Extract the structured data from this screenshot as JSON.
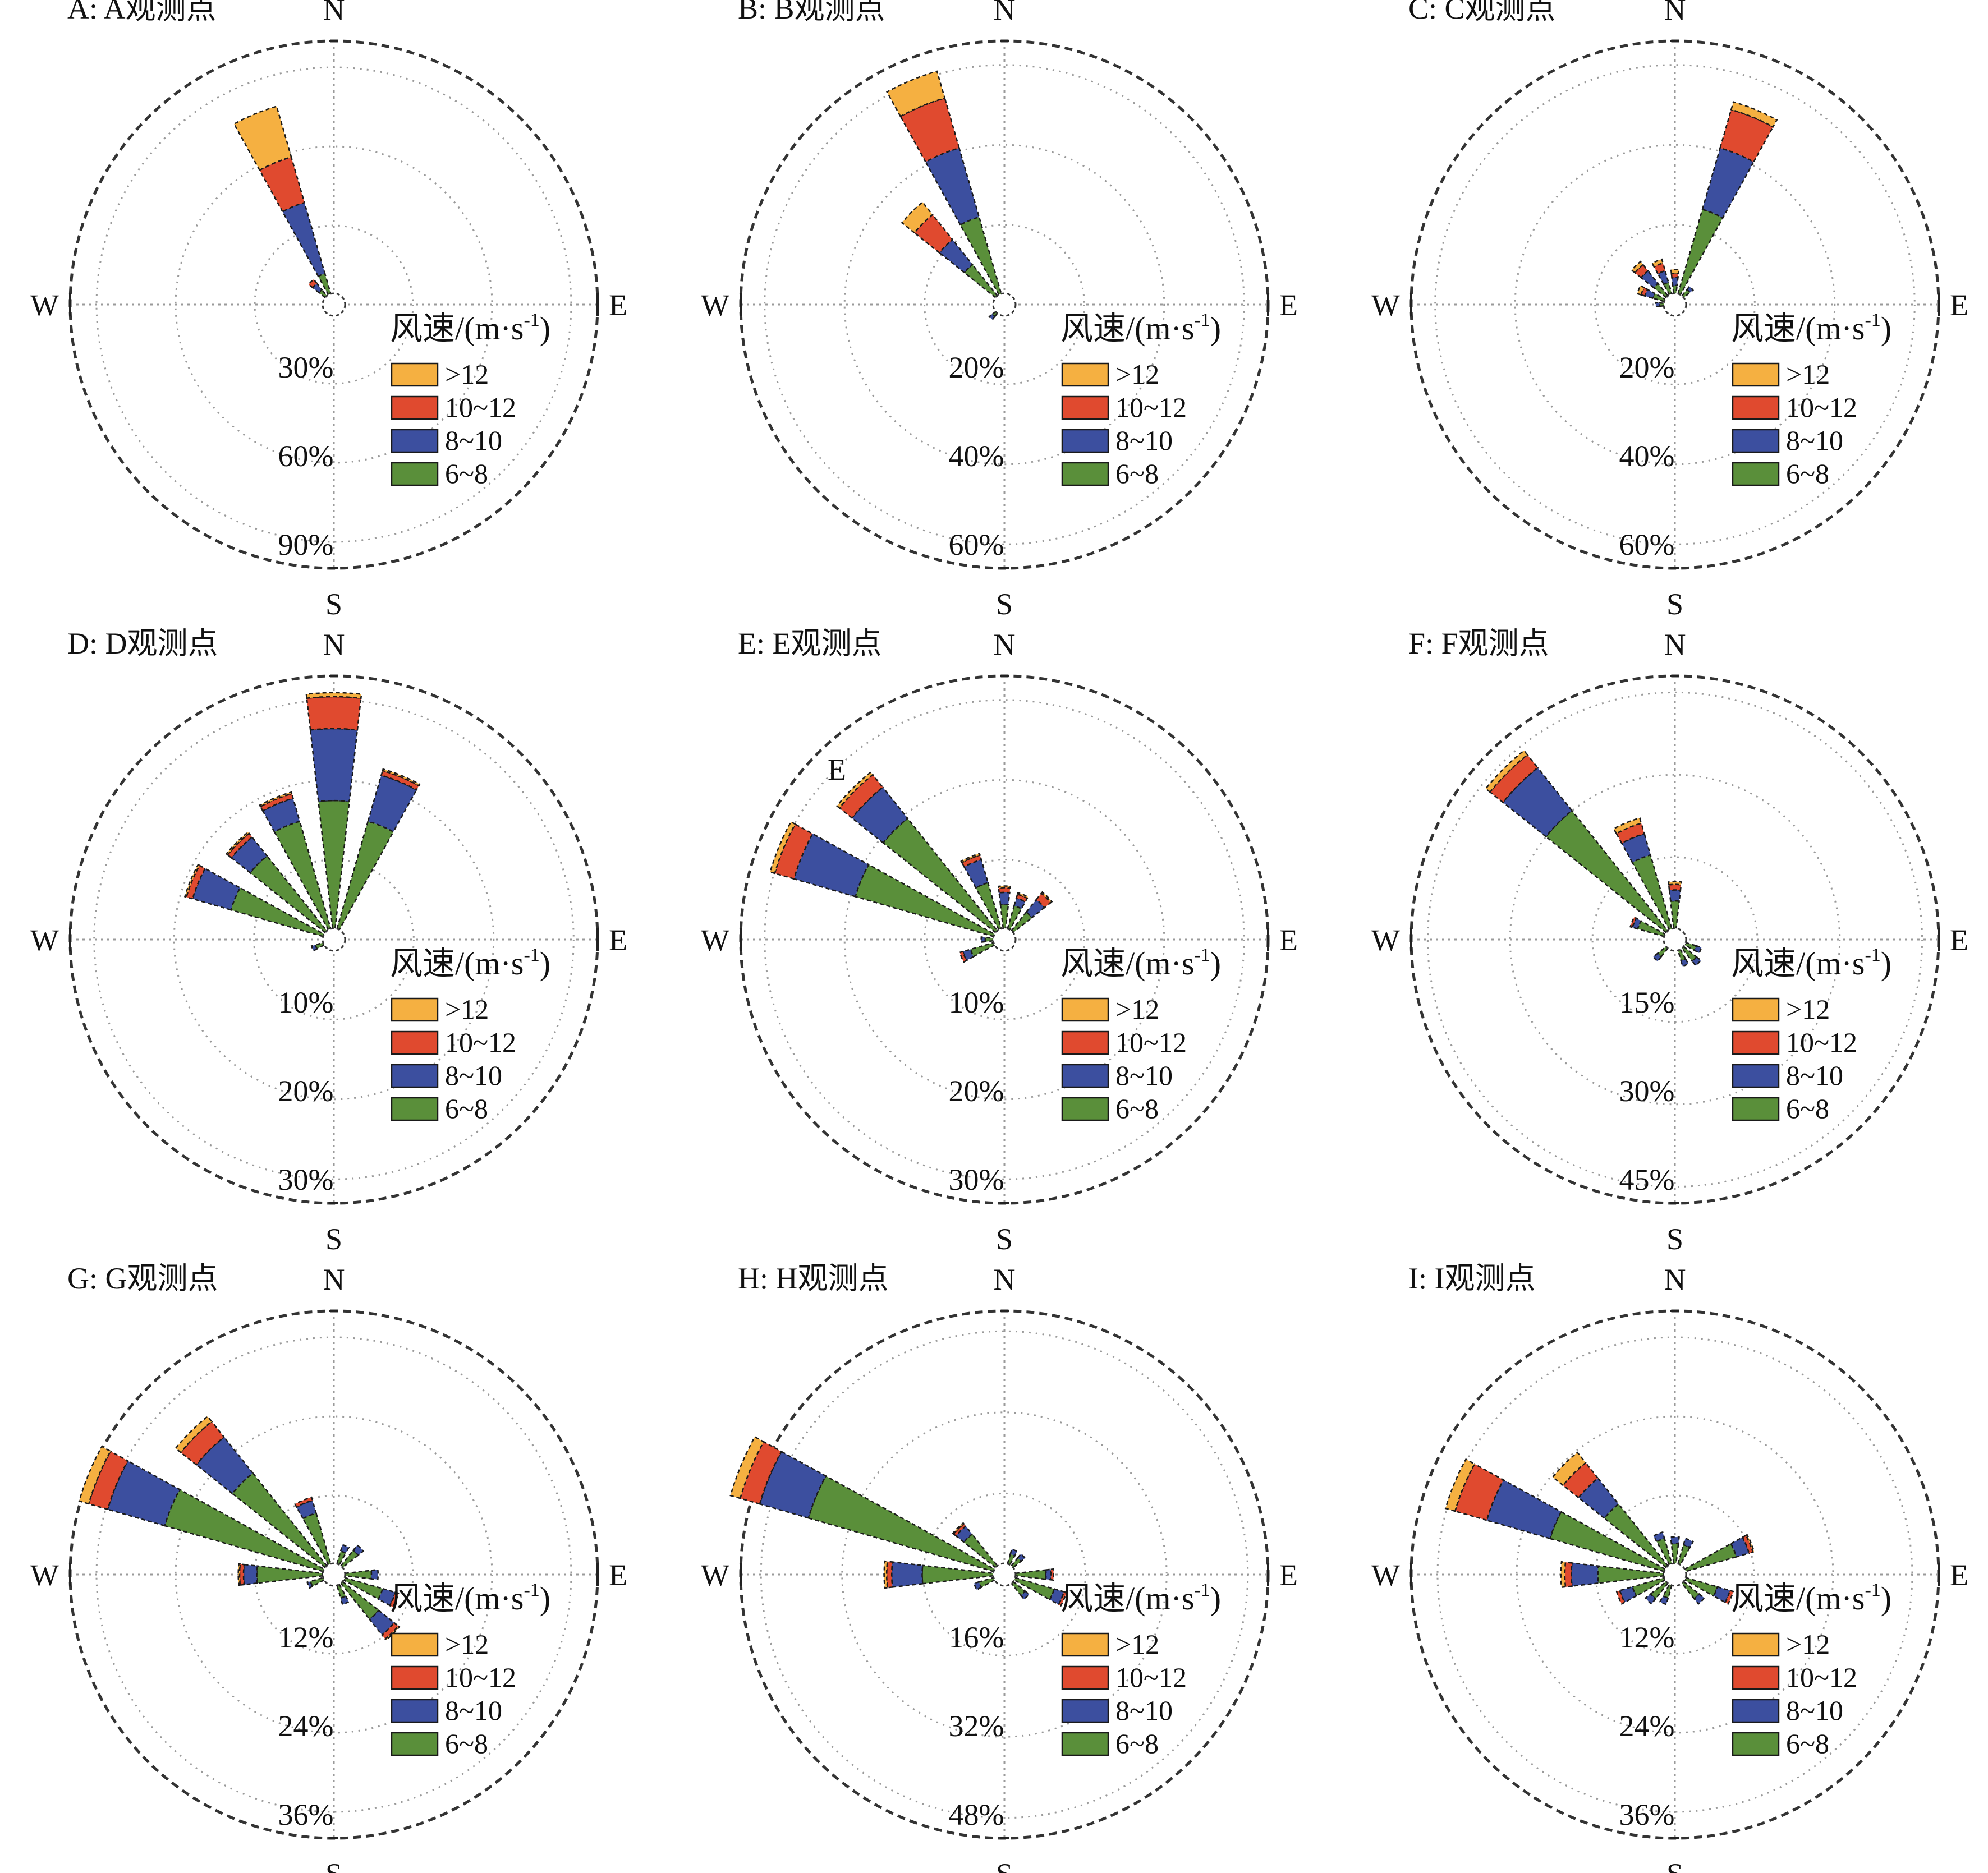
{
  "legend": {
    "title": "风速/(m·s",
    "title_sup": "-1",
    "title_close": ")",
    "bins": [
      {
        "label": ">12",
        "color": "#f5b041"
      },
      {
        "label": "10~12",
        "color": "#e04a2f"
      },
      {
        "label": "8~10",
        "color": "#3c4f9f"
      },
      {
        "label": "6~8",
        "color": "#5a8f3a"
      }
    ]
  },
  "compass_labels": {
    "n": "N",
    "s": "S",
    "e": "E",
    "w": "W"
  },
  "chart_data": [
    {
      "type": "windrose",
      "title": "A: A观测点",
      "rmax": 100,
      "ring_labels": [
        "30%",
        "60%",
        "90%"
      ],
      "ring_values": [
        30,
        60,
        90
      ],
      "stack_order": [
        "6~8",
        "8~10",
        "10~12",
        ">12"
      ],
      "directions": [
        {
          "dir": 337.5,
          "values": [
            8,
            28,
            18,
            20
          ]
        },
        {
          "dir": 315,
          "values": [
            3,
            3,
            2,
            0
          ]
        }
      ]
    },
    {
      "type": "windrose",
      "title": "B: B观测点",
      "rmax": 66,
      "ring_labels": [
        "20%",
        "40%",
        "60%"
      ],
      "ring_values": [
        20,
        40,
        60
      ],
      "stack_order": [
        "6~8",
        "8~10",
        "10~12",
        ">12"
      ],
      "directions": [
        {
          "dir": 337.5,
          "values": [
            20,
            18,
            13,
            7
          ]
        },
        {
          "dir": 315,
          "values": [
            10,
            8,
            8,
            4
          ]
        },
        {
          "dir": 225,
          "values": [
            1,
            1,
            0,
            0
          ]
        }
      ]
    },
    {
      "type": "windrose",
      "title": "C: C观测点",
      "rmax": 66,
      "ring_labels": [
        "20%",
        "40%",
        "60%"
      ],
      "ring_values": [
        20,
        40,
        60
      ],
      "stack_order": [
        "6~8",
        "8~10",
        "10~12",
        ">12"
      ],
      "directions": [
        {
          "dir": 22.5,
          "values": [
            22,
            16,
            10,
            2
          ]
        },
        {
          "dir": 337.5,
          "values": [
            3,
            3,
            2,
            1
          ]
        },
        {
          "dir": 315,
          "values": [
            4,
            4,
            2,
            1
          ]
        },
        {
          "dir": 0,
          "values": [
            2,
            2,
            1,
            1
          ]
        },
        {
          "dir": 45,
          "values": [
            2,
            1,
            0,
            0
          ]
        },
        {
          "dir": 292.5,
          "values": [
            3,
            2,
            1,
            1
          ]
        },
        {
          "dir": 270,
          "values": [
            1,
            1,
            0,
            0
          ]
        }
      ]
    },
    {
      "type": "windrose",
      "title": "D: D观测点",
      "rmax": 33,
      "ring_labels": [
        "10%",
        "20%",
        "30%"
      ],
      "ring_values": [
        10,
        20,
        30
      ],
      "stack_order": [
        "6~8",
        "8~10",
        "10~12",
        ">12"
      ],
      "directions": [
        {
          "dir": 0,
          "values": [
            16,
            9,
            4,
            0.5
          ]
        },
        {
          "dir": 22.5,
          "values": [
            14,
            6,
            0.6,
            0.2
          ]
        },
        {
          "dir": 337.5,
          "values": [
            14,
            3,
            0.6,
            0.2
          ]
        },
        {
          "dir": 315,
          "values": [
            12,
            3,
            0.6,
            0.2
          ]
        },
        {
          "dir": 292.5,
          "values": [
            12,
            5,
            0.8,
            0.2
          ]
        },
        {
          "dir": 247.5,
          "values": [
            1,
            0.5,
            0,
            0
          ]
        }
      ]
    },
    {
      "type": "windrose",
      "title": "E: E观测点",
      "rmax": 33,
      "ring_labels": [
        "10%",
        "20%",
        "30%"
      ],
      "ring_values": [
        10,
        20,
        30
      ],
      "stack_order": [
        "6~8",
        "8~10",
        "10~12",
        ">12"
      ],
      "directions": [
        {
          "dir": 315,
          "values": [
            18,
            5,
            2,
            0.4
          ]
        },
        {
          "dir": 292.5,
          "values": [
            18,
            8,
            2.5,
            0.6
          ]
        },
        {
          "dir": 337.5,
          "values": [
            6,
            3,
            0.6,
            0.2
          ]
        },
        {
          "dir": 0,
          "values": [
            3,
            1.5,
            0.6,
            0.2
          ]
        },
        {
          "dir": 22.5,
          "values": [
            3,
            1,
            0.5,
            0.2
          ]
        },
        {
          "dir": 45,
          "values": [
            3,
            2,
            1,
            0.2
          ]
        },
        {
          "dir": 247.5,
          "values": [
            3,
            1,
            0.4,
            0
          ]
        },
        {
          "dir": 270,
          "values": [
            1,
            0.5,
            0,
            0
          ]
        }
      ],
      "annotation": "E"
    },
    {
      "type": "windrose",
      "title": "F: F观测点",
      "rmax": 48,
      "ring_labels": [
        "15%",
        "30%",
        "45%"
      ],
      "ring_values": [
        15,
        30,
        45
      ],
      "stack_order": [
        "6~8",
        "8~10",
        "10~12",
        ">12"
      ],
      "directions": [
        {
          "dir": 315,
          "values": [
            28,
            10,
            3,
            1
          ]
        },
        {
          "dir": 337.5,
          "values": [
            14,
            4,
            2,
            1
          ]
        },
        {
          "dir": 0,
          "values": [
            5,
            2,
            1,
            0.5
          ]
        },
        {
          "dir": 292.5,
          "values": [
            5,
            1,
            0.4,
            0
          ]
        },
        {
          "dir": 135,
          "values": [
            3,
            1,
            0,
            0
          ]
        },
        {
          "dir": 157.5,
          "values": [
            2,
            1,
            0,
            0
          ]
        },
        {
          "dir": 112.5,
          "values": [
            2,
            1,
            0,
            0
          ]
        },
        {
          "dir": 225,
          "values": [
            2,
            1,
            0,
            0
          ]
        }
      ]
    },
    {
      "type": "windrose",
      "title": "G: G观测点",
      "rmax": 40,
      "ring_labels": [
        "12%",
        "24%",
        "36%"
      ],
      "ring_values": [
        12,
        24,
        36
      ],
      "stack_order": [
        "6~8",
        "8~10",
        "10~12",
        ">12"
      ],
      "directions": [
        {
          "dir": 292.5,
          "values": [
            25,
            9,
            3,
            1.5
          ]
        },
        {
          "dir": 315,
          "values": [
            18,
            7,
            3,
            1
          ]
        },
        {
          "dir": 337.5,
          "values": [
            8,
            2,
            0.5,
            0
          ]
        },
        {
          "dir": 270,
          "values": [
            10,
            2,
            0.6,
            0.2
          ]
        },
        {
          "dir": 135,
          "values": [
            7,
            3,
            0.8,
            0.2
          ]
        },
        {
          "dir": 112.5,
          "values": [
            6,
            2,
            0.5,
            0
          ]
        },
        {
          "dir": 90,
          "values": [
            4,
            1,
            0,
            0
          ]
        },
        {
          "dir": 45,
          "values": [
            3,
            1,
            0,
            0
          ]
        },
        {
          "dir": 22.5,
          "values": [
            2,
            1,
            0,
            0
          ]
        },
        {
          "dir": 157.5,
          "values": [
            2,
            1,
            0,
            0
          ]
        },
        {
          "dir": 247.5,
          "values": [
            2,
            0.5,
            0,
            0
          ]
        }
      ]
    },
    {
      "type": "windrose",
      "title": "H: H观测点",
      "rmax": 52,
      "ring_labels": [
        "16%",
        "32%",
        "48%"
      ],
      "ring_values": [
        16,
        32,
        48
      ],
      "stack_order": [
        "6~8",
        "8~10",
        "10~12",
        ">12"
      ],
      "directions": [
        {
          "dir": 292.5,
          "values": [
            38,
            10,
            4,
            2
          ]
        },
        {
          "dir": 270,
          "values": [
            14,
            6,
            1,
            0.5
          ]
        },
        {
          "dir": 315,
          "values": [
            8,
            2,
            0.6,
            0.2
          ]
        },
        {
          "dir": 112.5,
          "values": [
            8,
            2,
            0.5,
            0
          ]
        },
        {
          "dir": 90,
          "values": [
            6,
            1,
            0.5,
            0
          ]
        },
        {
          "dir": 135,
          "values": [
            3,
            1,
            0,
            0
          ]
        },
        {
          "dir": 247.5,
          "values": [
            3,
            1,
            0,
            0
          ]
        },
        {
          "dir": 22.5,
          "values": [
            2,
            1,
            0,
            0
          ]
        },
        {
          "dir": 45,
          "values": [
            2,
            1,
            0,
            0
          ]
        }
      ]
    },
    {
      "type": "windrose",
      "title": "I: I观测点",
      "rmax": 40,
      "ring_labels": [
        "12%",
        "24%",
        "36%"
      ],
      "ring_values": [
        12,
        24,
        36
      ],
      "stack_order": [
        "6~8",
        "8~10",
        "10~12",
        ">12"
      ],
      "directions": [
        {
          "dir": 292.5,
          "values": [
            18,
            10,
            5,
            1.5
          ]
        },
        {
          "dir": 315,
          "values": [
            12,
            5,
            3,
            2
          ]
        },
        {
          "dir": 270,
          "values": [
            10,
            4,
            1,
            0.6
          ]
        },
        {
          "dir": 67.5,
          "values": [
            8,
            2,
            0.6,
            0.2
          ]
        },
        {
          "dir": 337.5,
          "values": [
            4,
            1,
            0,
            0
          ]
        },
        {
          "dir": 0,
          "values": [
            3,
            1,
            0,
            0
          ]
        },
        {
          "dir": 22.5,
          "values": [
            3,
            1,
            0,
            0
          ]
        },
        {
          "dir": 112.5,
          "values": [
            5,
            2,
            0.5,
            0
          ]
        },
        {
          "dir": 135,
          "values": [
            3,
            1,
            0,
            0
          ]
        },
        {
          "dir": 247.5,
          "values": [
            5,
            2,
            0.5,
            0
          ]
        },
        {
          "dir": 225,
          "values": [
            3,
            1,
            0,
            0
          ]
        },
        {
          "dir": 202.5,
          "values": [
            2,
            1,
            0,
            0
          ]
        }
      ]
    }
  ]
}
